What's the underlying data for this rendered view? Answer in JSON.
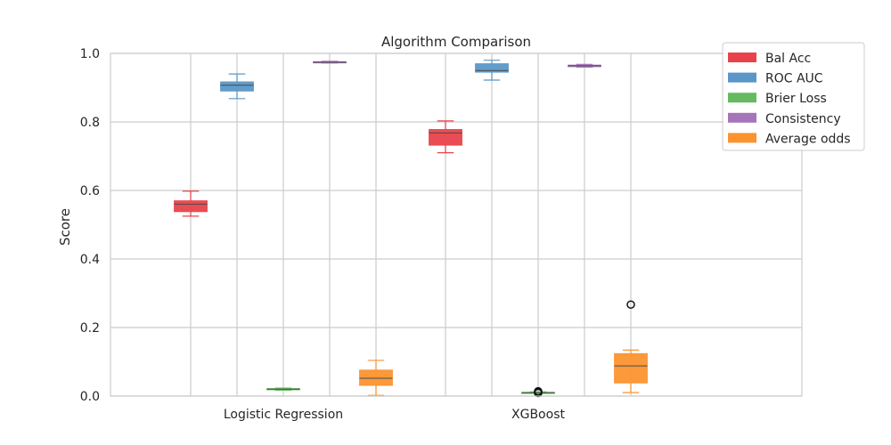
{
  "chart_data": {
    "type": "box",
    "title": "Algorithm Comparison",
    "xlabel": "",
    "ylabel": "Score",
    "ylim": [
      0,
      1.0
    ],
    "y_ticks": [
      "0.0",
      "0.2",
      "0.4",
      "0.6",
      "0.8",
      "1.0"
    ],
    "categories": [
      "Logistic Regression",
      "XGBoost"
    ],
    "grid": true,
    "legend_position": "top-right",
    "series": [
      {
        "name": "Bal Acc",
        "color": "#e8434a",
        "boxes": [
          {
            "whisker_low": 0.525,
            "q1": 0.538,
            "median": 0.56,
            "q3": 0.57,
            "whisker_high": 0.598,
            "outliers": []
          },
          {
            "whisker_low": 0.71,
            "q1": 0.732,
            "median": 0.768,
            "q3": 0.778,
            "whisker_high": 0.803,
            "outliers": []
          }
        ]
      },
      {
        "name": "ROC AUC",
        "color": "#5a97c8",
        "boxes": [
          {
            "whisker_low": 0.868,
            "q1": 0.89,
            "median": 0.907,
            "q3": 0.917,
            "whisker_high": 0.94,
            "outliers": []
          },
          {
            "whisker_low": 0.922,
            "q1": 0.945,
            "median": 0.95,
            "q3": 0.97,
            "whisker_high": 0.98,
            "outliers": []
          }
        ]
      },
      {
        "name": "Brier Loss",
        "color": "#65ba60",
        "boxes": [
          {
            "whisker_low": 0.017,
            "q1": 0.019,
            "median": 0.02,
            "q3": 0.022,
            "whisker_high": 0.023,
            "outliers": []
          },
          {
            "whisker_low": 0.008,
            "q1": 0.009,
            "median": 0.01,
            "q3": 0.011,
            "whisker_high": 0.012,
            "outliers": [
              0.009,
              0.011,
              0.014
            ]
          }
        ]
      },
      {
        "name": "Consistency",
        "color": "#a674b8",
        "boxes": [
          {
            "whisker_low": 0.972,
            "q1": 0.973,
            "median": 0.974,
            "q3": 0.976,
            "whisker_high": 0.977,
            "outliers": []
          },
          {
            "whisker_low": 0.96,
            "q1": 0.961,
            "median": 0.964,
            "q3": 0.966,
            "whisker_high": 0.968,
            "outliers": []
          }
        ]
      },
      {
        "name": "Average odds",
        "color": "#fb9330",
        "boxes": [
          {
            "whisker_low": 0.002,
            "q1": 0.031,
            "median": 0.052,
            "q3": 0.076,
            "whisker_high": 0.104,
            "outliers": []
          },
          {
            "whisker_low": 0.01,
            "q1": 0.038,
            "median": 0.088,
            "q3": 0.124,
            "whisker_high": 0.134,
            "outliers": [
              0.267
            ]
          }
        ]
      }
    ]
  }
}
